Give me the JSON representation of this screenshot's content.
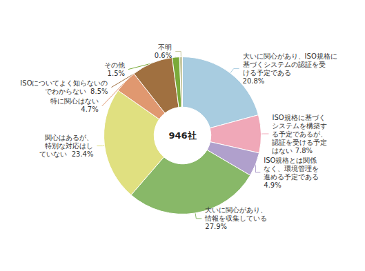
{
  "chart_data": {
    "type": "pie",
    "annotations": [
      "946社"
    ],
    "values": [
      20.8,
      7.8,
      4.9,
      27.9,
      23.4,
      4.7,
      8.5,
      1.5,
      0.6
    ],
    "value_labels": [
      "大いに関心があり、ISO規格に\n基づくシステムの認証を受\nける予定である\n20.8%",
      "ISO規格に基づく\nシステムを構築す\nる予定であるが、\n認証を受ける予定\nはない 7.8%",
      "ISO規格とは関係\nなく、環境管理を\n進める予定である\n4.9%",
      "大いに関心があり、\n情報を収集している\n27.9%",
      "関心はあるが、\n特別な対応はし\nていない  23.4%",
      "特に関心はない\n4.7%",
      "ISOについてよく知らないの\nでわからない  8.5%",
      "その他\n1.5%",
      "不明\n0.6%"
    ],
    "colors": [
      "#a8cce0",
      "#f0a8b8",
      "#b0a0cc",
      "#88b868",
      "#e0e080",
      "#e09870",
      "#a07040",
      "#7aaa3a",
      "#c8c8a0"
    ],
    "data_labels": true
  }
}
